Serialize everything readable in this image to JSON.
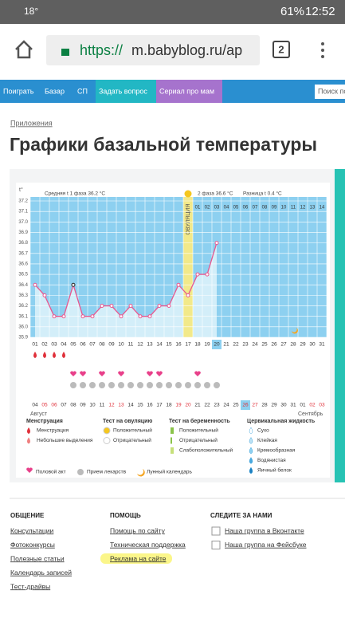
{
  "status_bar": {
    "temperature": "18°",
    "battery": "61%",
    "time": "12:52"
  },
  "browser": {
    "url_scheme": "https://",
    "url_host": "m.babyblog.ru/ap",
    "tabs": "2"
  },
  "nav": {
    "items": [
      "Поиграть",
      "Базар",
      "СП",
      "Задать вопрос",
      "Сериал про мам"
    ],
    "search": "Поиск по"
  },
  "breadcrumb": "Приложения",
  "title": "Графики базальной температуры",
  "chart_data": {
    "type": "line",
    "y_label": "t°",
    "phase1_text": "Средняя t 1 фаза 36.2 °С",
    "phase2_text": "2 фаза 36.6 °С",
    "diff_text": "Разница t 0.4 °С",
    "ovulation_label": "ОВУЛЯЦИЯ",
    "ovulation_category": "17",
    "today_category": "20",
    "categories": [
      "01",
      "02",
      "03",
      "04",
      "05",
      "06",
      "07",
      "08",
      "09",
      "10",
      "11",
      "12",
      "13",
      "14",
      "15",
      "16",
      "17",
      "18",
      "19",
      "20",
      "21",
      "22",
      "23",
      "24",
      "25",
      "26",
      "27",
      "28",
      "29",
      "30",
      "31"
    ],
    "values": [
      36.4,
      36.3,
      36.1,
      36.1,
      36.4,
      36.1,
      36.1,
      36.2,
      36.2,
      36.1,
      36.2,
      36.1,
      36.1,
      36.2,
      36.2,
      36.4,
      36.3,
      36.5,
      36.5,
      36.8,
      null,
      null,
      null,
      null,
      null,
      null,
      null,
      null,
      null,
      null,
      null
    ],
    "color": "#e8578f",
    "phase2_days": [
      null,
      null,
      null,
      null,
      null,
      null,
      null,
      null,
      null,
      null,
      null,
      null,
      null,
      null,
      null,
      null,
      null,
      "01",
      "02",
      "03",
      "04",
      "05",
      "06",
      "07",
      "08",
      "09",
      "10",
      "11",
      "12",
      "13",
      "14"
    ],
    "dates": [
      "04",
      "05",
      "06",
      "07",
      "08",
      "09",
      "10",
      "11",
      "12",
      "13",
      "14",
      "15",
      "16",
      "17",
      "18",
      "19",
      "20",
      "21",
      "22",
      "23",
      "24",
      "25",
      "26",
      "27",
      "28",
      "29",
      "30",
      "31",
      "01",
      "02",
      "03"
    ],
    "weekend": [
      false,
      true,
      true,
      false,
      false,
      false,
      false,
      false,
      true,
      true,
      false,
      false,
      false,
      false,
      false,
      true,
      true,
      false,
      false,
      false,
      false,
      false,
      true,
      true,
      false,
      false,
      false,
      false,
      false,
      true,
      true
    ],
    "months": [
      "Август",
      "Сентябрь"
    ],
    "ylim": [
      35.9,
      37.2
    ],
    "yticks": [
      37.2,
      37.1,
      {
        "value": 37,
        "label": "37.0"
      },
      36.9,
      36.8,
      36.7,
      36.6,
      36.5,
      36.4,
      36.3,
      36.2,
      36.1,
      {
        "value": 36,
        "label": "36.0"
      },
      35.9
    ],
    "legend": [
      {
        "title": "Менструация",
        "items": [
          "Менструация",
          "Небольшие выделения"
        ]
      },
      {
        "title": "Тест на овуляцию",
        "items": [
          "Положительный",
          "Отрицательный"
        ]
      },
      {
        "title": "Тест на беременность",
        "items": [
          "Положительный",
          "Отрицательный",
          "Слабоположительный"
        ]
      },
      {
        "title": "Цервикальная жидкость",
        "items": [
          "Сухо",
          "Клейкая",
          "Кремообразная",
          "Водянистая",
          "Яичный белок"
        ]
      }
    ],
    "legend2": [
      "Половой акт",
      "Прием лекарств",
      "Лунный календарь"
    ]
  },
  "footer": [
    {
      "title": "ОБЩЕНИЕ",
      "links": [
        "Консультации",
        "Фотоконкурсы",
        "Полезные статьи",
        "Календарь записей",
        "Тест-драйвы"
      ]
    },
    {
      "title": "ПОМОЩЬ",
      "links": [
        "Помощь по сайту",
        "Техническая поддержка",
        "Реклама на сайте"
      ]
    },
    {
      "title": "СЛЕДИТЕ ЗА НАМИ",
      "links": [
        "Наша группа в Вконтакте",
        "Наша группа на Фейсбуке"
      ]
    }
  ]
}
